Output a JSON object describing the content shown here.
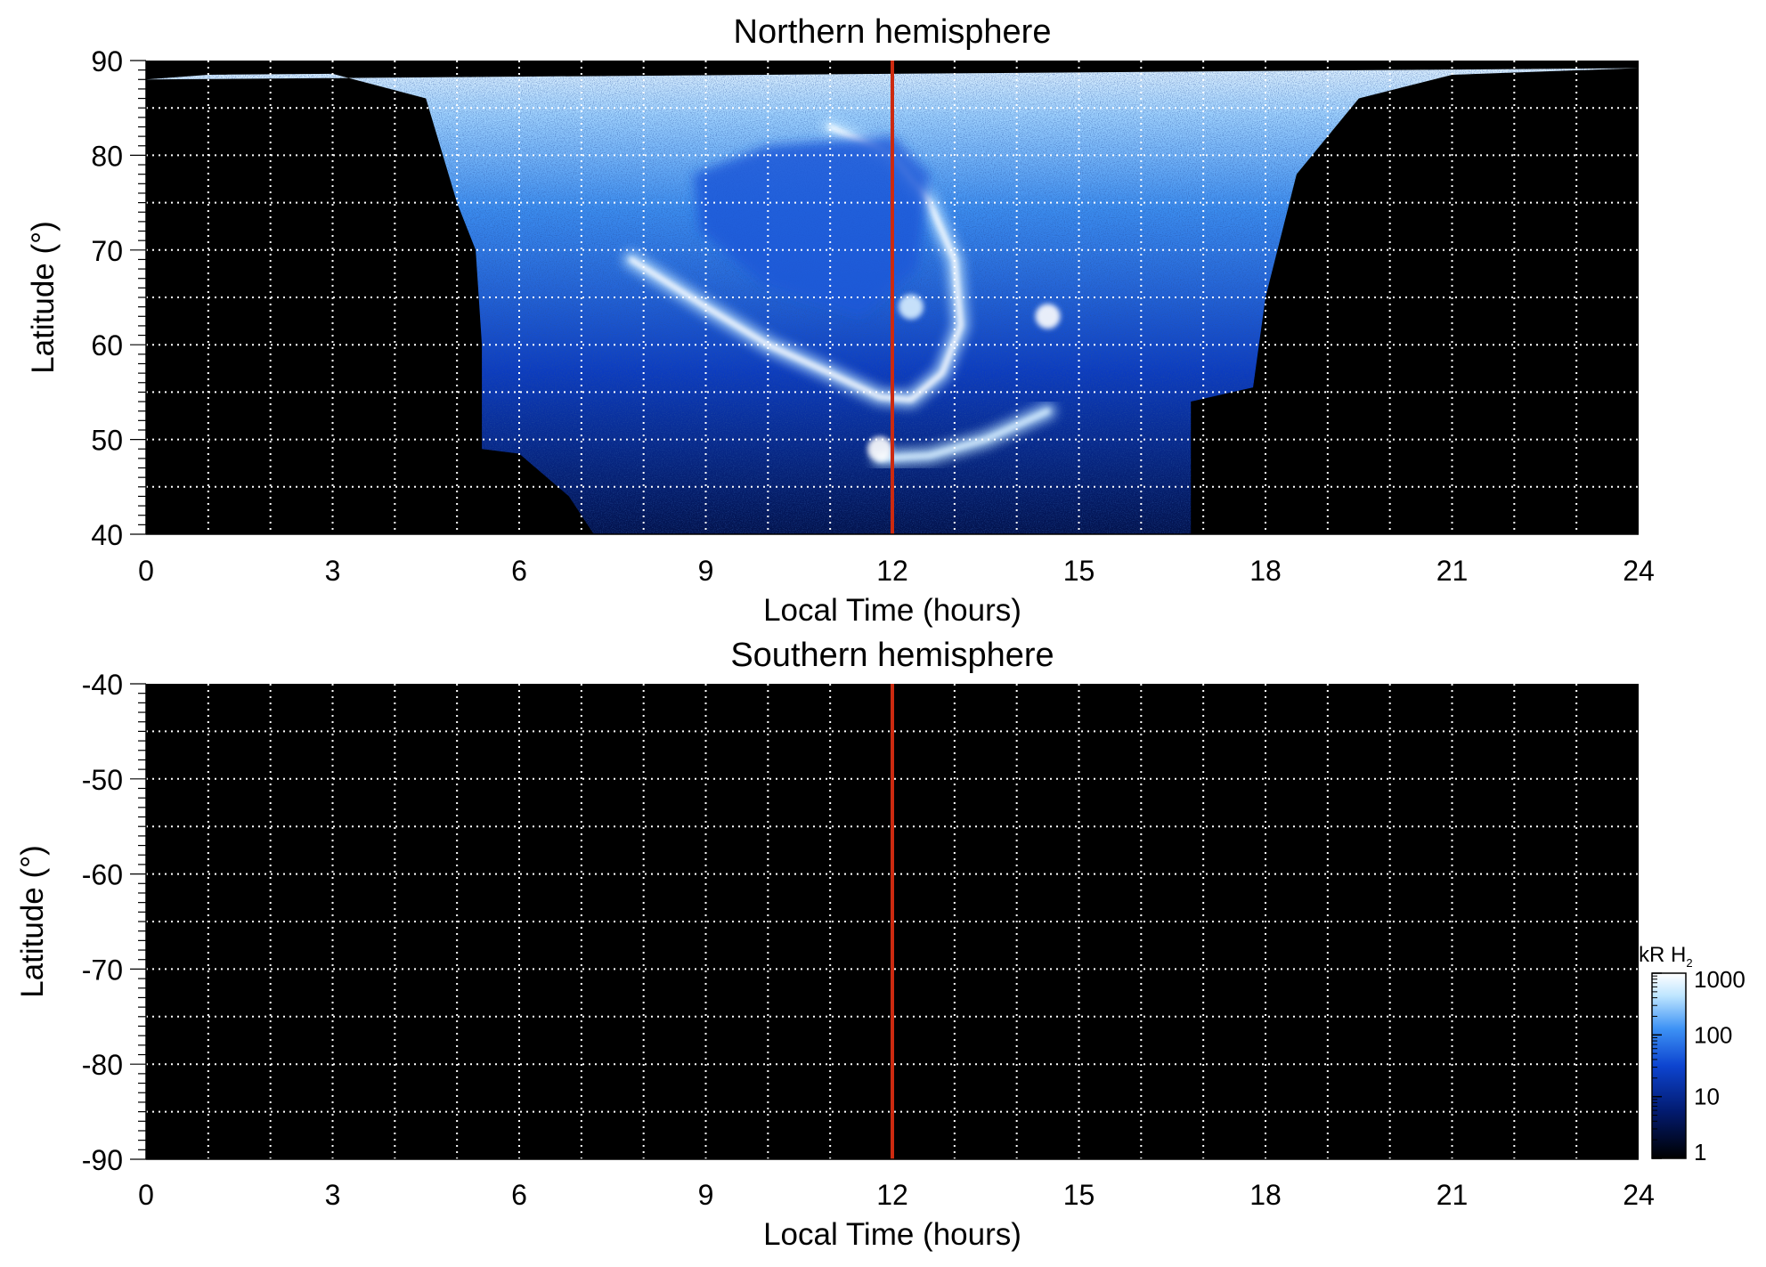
{
  "chart_data": [
    {
      "type": "heatmap",
      "title": "Northern hemisphere",
      "xlabel": "Local Time (hours)",
      "ylabel": "Latitude (°)",
      "xlim": [
        0,
        24
      ],
      "ylim": [
        40,
        90
      ],
      "x_ticks": [
        "0",
        "3",
        "6",
        "9",
        "12",
        "15",
        "18",
        "21",
        "24"
      ],
      "x_tick_values": [
        0,
        3,
        6,
        9,
        12,
        15,
        18,
        21,
        24
      ],
      "y_ticks": [
        "40",
        "50",
        "60",
        "70",
        "80",
        "90"
      ],
      "y_tick_values": [
        40,
        50,
        60,
        70,
        80,
        90
      ],
      "grid": true,
      "grid_x_step": 1,
      "grid_y_step": 5,
      "marker_line": {
        "x": 12,
        "color": "#cc2a10"
      },
      "coverage_boundary": [
        [
          0,
          88
        ],
        [
          1,
          88.5
        ],
        [
          3,
          88.6
        ],
        [
          4.5,
          86
        ],
        [
          5,
          75
        ],
        [
          5.3,
          70
        ],
        [
          5.4,
          60
        ],
        [
          5.4,
          49
        ],
        [
          6.0,
          48.5
        ],
        [
          6.8,
          44
        ],
        [
          7.2,
          40
        ],
        [
          16.8,
          40
        ],
        [
          16.8,
          54
        ],
        [
          17.8,
          55.5
        ],
        [
          18.0,
          65
        ],
        [
          18.5,
          78
        ],
        [
          19.5,
          86
        ],
        [
          21,
          88.5
        ],
        [
          24,
          89.2
        ]
      ],
      "features": [
        {
          "name": "main auroral oval",
          "points": [
            [
              7.8,
              69
            ],
            [
              9,
              64
            ],
            [
              10,
              60
            ],
            [
              11,
              57
            ],
            [
              11.8,
              54.5
            ],
            [
              12.3,
              54.2
            ],
            [
              12.8,
              57
            ],
            [
              13.1,
              62
            ],
            [
              13.0,
              69
            ],
            [
              12.6,
              75
            ],
            [
              12.0,
              80
            ],
            [
              11.0,
              83
            ]
          ],
          "intensity_kR": 800
        },
        {
          "name": "dayside arc",
          "points": [
            [
              11.8,
              48
            ],
            [
              12.6,
              48.3
            ],
            [
              13.5,
              50
            ],
            [
              14.5,
              53
            ]
          ],
          "intensity_kR": 300
        },
        {
          "name": "polar cap dim region",
          "points": [
            [
              8.8,
              78
            ],
            [
              10,
              81
            ],
            [
              12,
              82
            ],
            [
              12.6,
              78
            ],
            [
              12.4,
              68
            ],
            [
              11.5,
              63
            ],
            [
              10,
              66
            ],
            [
              8.9,
              72
            ]
          ],
          "intensity_kR": 30
        },
        {
          "name": "spot",
          "points": [
            [
              14.5,
              63
            ]
          ],
          "intensity_kR": 500
        },
        {
          "name": "spot",
          "points": [
            [
              12.3,
              64
            ]
          ],
          "intensity_kR": 400
        },
        {
          "name": "spot",
          "points": [
            [
              11.8,
              49
            ]
          ],
          "intensity_kR": 600
        }
      ]
    },
    {
      "type": "heatmap",
      "title": "Southern hemisphere",
      "xlabel": "Local Time (hours)",
      "ylabel": "Latitude (°)",
      "xlim": [
        0,
        24
      ],
      "ylim": [
        -90,
        -40
      ],
      "x_ticks": [
        "0",
        "3",
        "6",
        "9",
        "12",
        "15",
        "18",
        "21",
        "24"
      ],
      "x_tick_values": [
        0,
        3,
        6,
        9,
        12,
        15,
        18,
        21,
        24
      ],
      "y_ticks": [
        "-40",
        "-50",
        "-60",
        "-70",
        "-80",
        "-90"
      ],
      "y_tick_values": [
        -40,
        -50,
        -60,
        -70,
        -80,
        -90
      ],
      "grid": true,
      "grid_x_step": 1,
      "grid_y_step": 5,
      "marker_line": {
        "x": 12,
        "color": "#cc2a10"
      },
      "coverage_boundary": [],
      "features": []
    }
  ],
  "colorbar": {
    "label_prefix": "kR H",
    "label_subscript": "2",
    "scale": "log",
    "range": [
      1,
      1000
    ],
    "ticks": [
      "1000",
      "100",
      "10",
      "1"
    ],
    "tick_values": [
      1000,
      100,
      10,
      1
    ],
    "colors": [
      "#000000",
      "#021a6e",
      "#0d44d0",
      "#3d92f5",
      "#bfe6ff",
      "#ffffff"
    ]
  }
}
